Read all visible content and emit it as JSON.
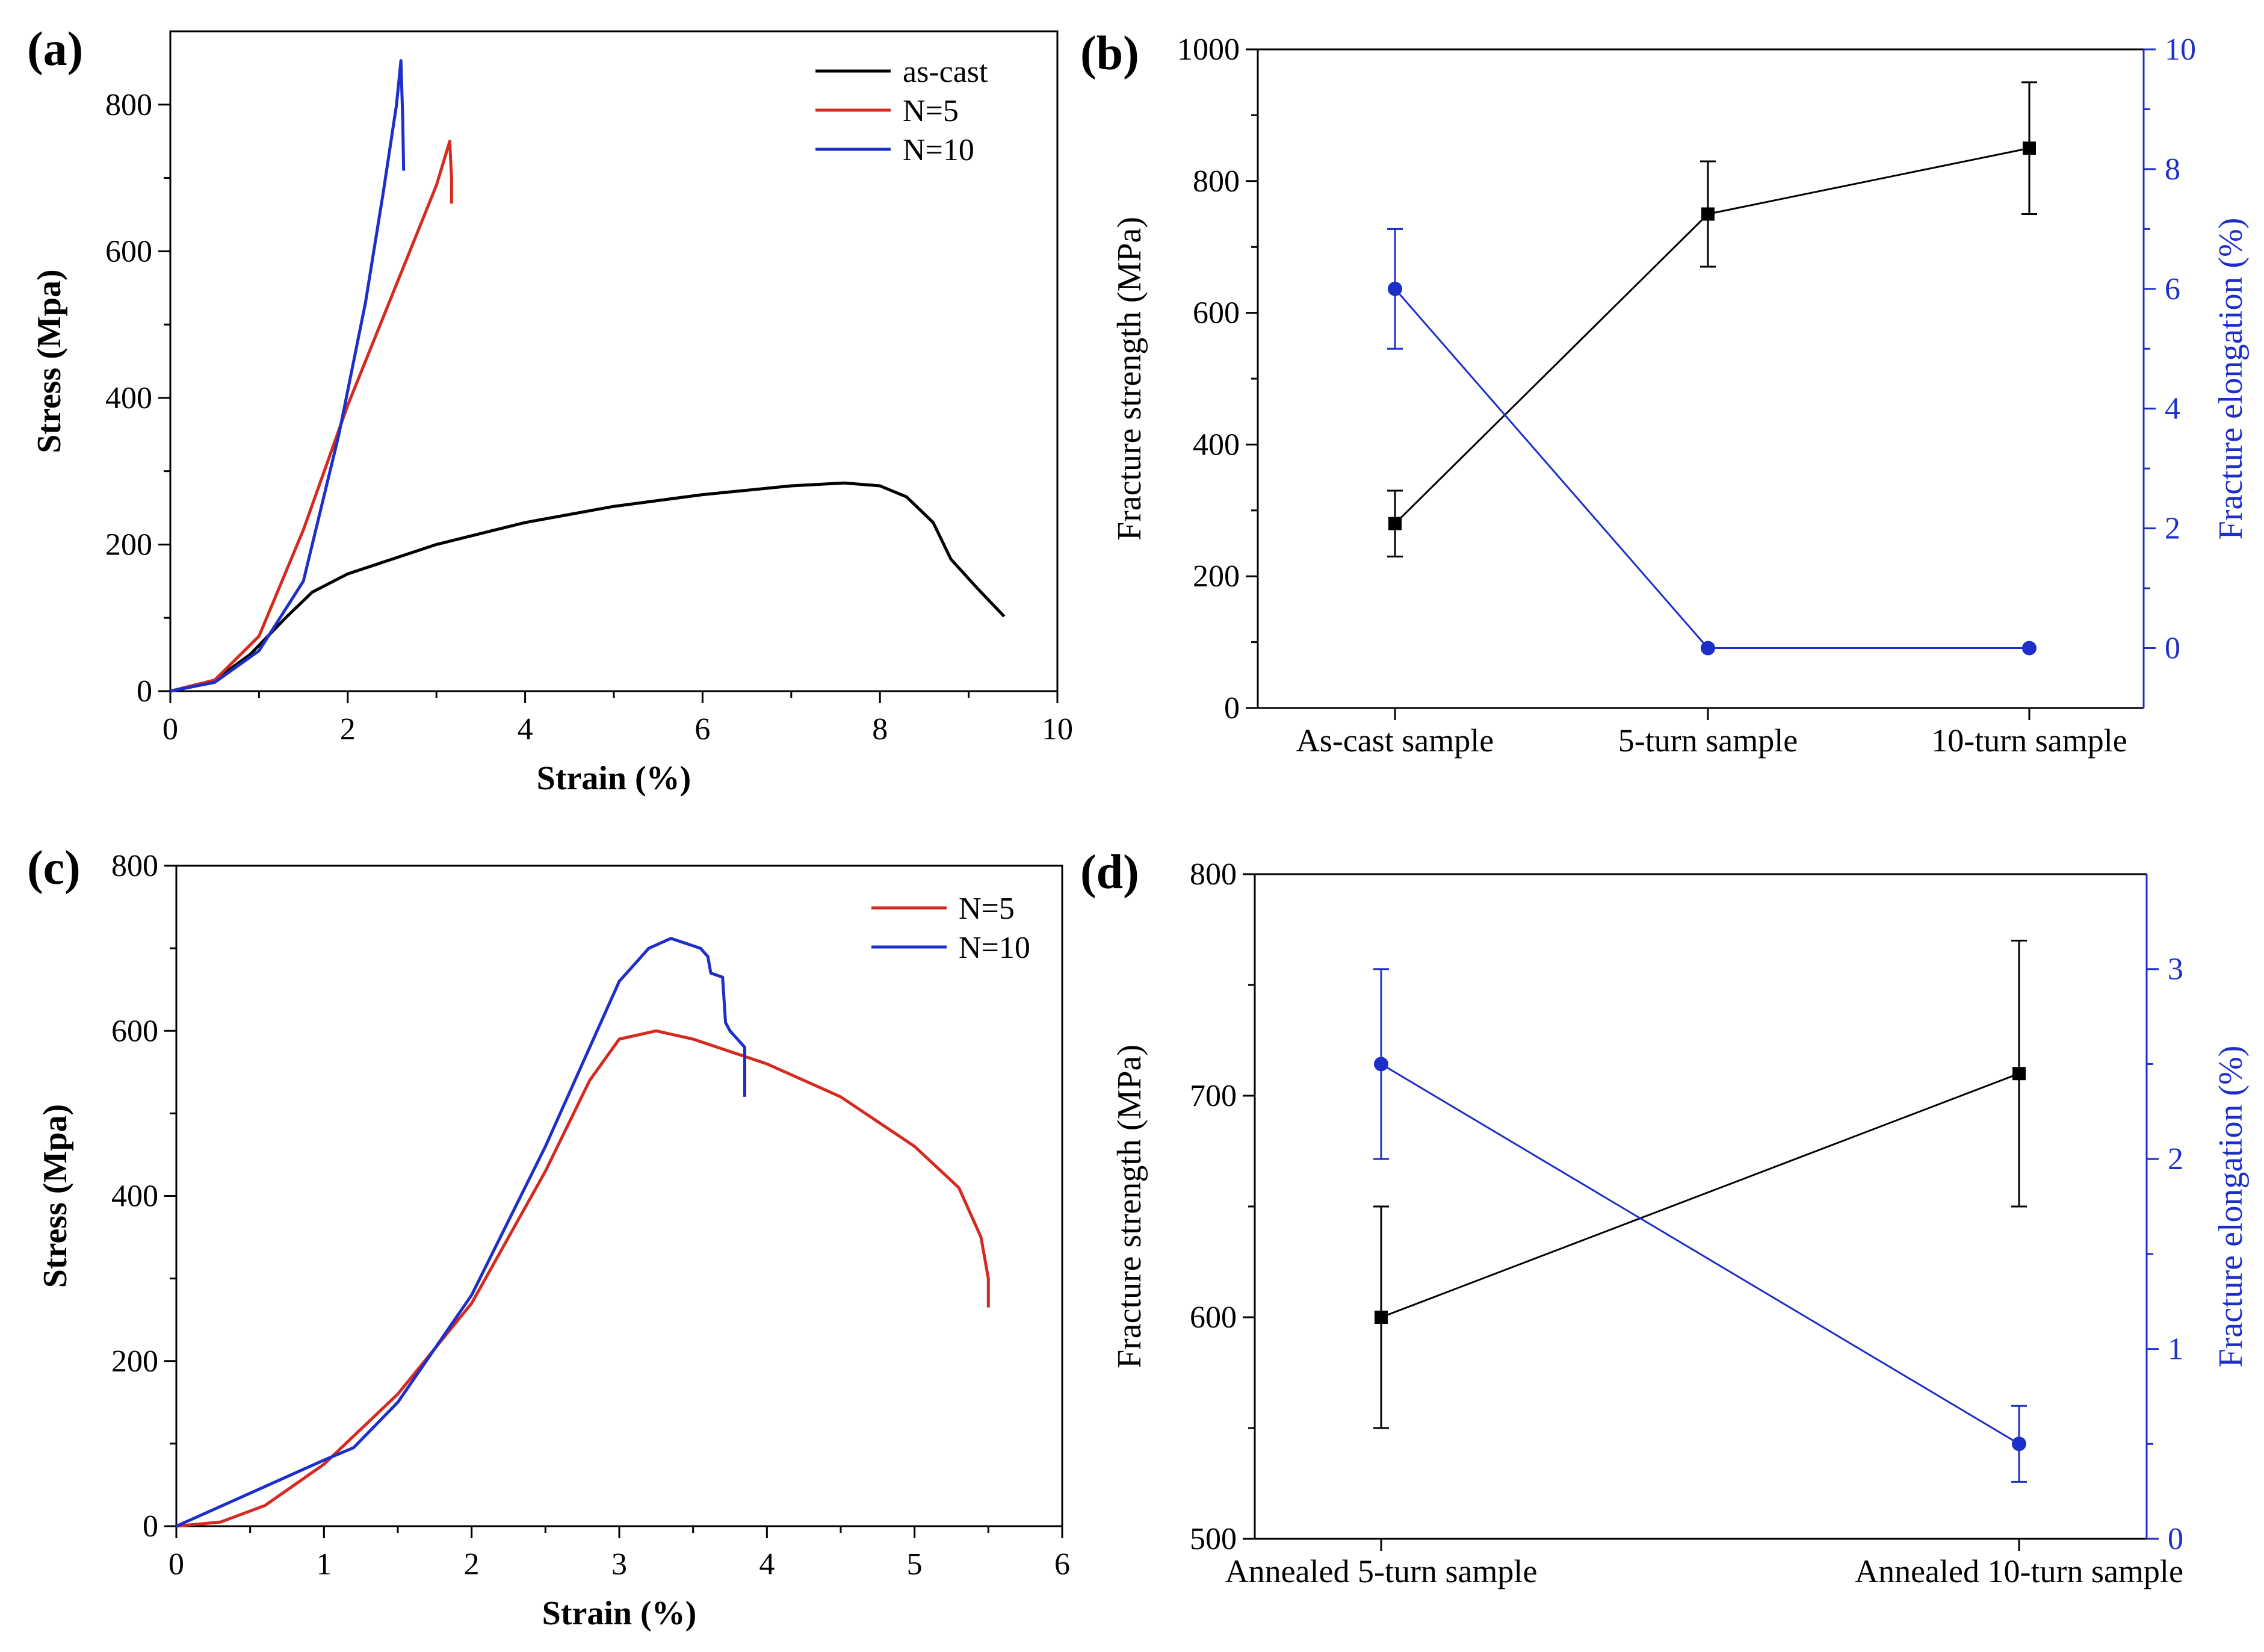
{
  "chart_data": [
    {
      "panel": "(a)",
      "type": "line",
      "xlabel": "Strain (%)",
      "ylabel": "Stress (Mpa)",
      "xlim": [
        0,
        10
      ],
      "ylim": [
        0,
        900
      ],
      "xticks": [
        0,
        2,
        4,
        6,
        8,
        10
      ],
      "yticks": [
        0,
        200,
        400,
        600,
        800
      ],
      "legend_position": "top-right",
      "series": [
        {
          "name": "as-cast",
          "color": "#000000",
          "x": [
            0,
            0.5,
            0.9,
            1.3,
            1.6,
            2.0,
            3.0,
            4.0,
            5.0,
            6.0,
            7.0,
            7.6,
            8.0,
            8.3,
            8.6,
            8.8,
            9.1,
            9.4
          ],
          "y": [
            0,
            15,
            50,
            100,
            135,
            160,
            200,
            230,
            252,
            268,
            280,
            284,
            280,
            265,
            230,
            180,
            140,
            102
          ]
        },
        {
          "name": "N=5",
          "color": "#d42a1f",
          "x": [
            0,
            0.5,
            1.0,
            1.5,
            2.0,
            2.5,
            3.0,
            3.15,
            3.17,
            3.17
          ],
          "y": [
            0,
            15,
            75,
            220,
            390,
            540,
            690,
            750,
            700,
            665
          ]
        },
        {
          "name": "N=10",
          "color": "#1d2fc9",
          "x": [
            0,
            0.5,
            1.0,
            1.5,
            1.9,
            2.2,
            2.4,
            2.55,
            2.6,
            2.62,
            2.63
          ],
          "y": [
            0,
            12,
            55,
            150,
            350,
            530,
            680,
            800,
            860,
            780,
            710
          ]
        }
      ]
    },
    {
      "panel": "(b)",
      "type": "line",
      "categories": [
        "As-cast sample",
        "5-turn sample",
        "10-turn sample"
      ],
      "ylabel": "Fracture strength (MPa)",
      "y2label": "Fracture elongation (%)",
      "ylim": [
        0,
        1000
      ],
      "y2lim": [
        -1,
        10
      ],
      "yticks": [
        0,
        200,
        400,
        600,
        800,
        1000
      ],
      "y2ticks": [
        0,
        2,
        4,
        6,
        8,
        10
      ],
      "series": [
        {
          "name": "Fracture strength",
          "axis": "left",
          "color": "#000000",
          "marker": "square",
          "values": [
            280,
            750,
            850
          ],
          "err_low": [
            230,
            670,
            750
          ],
          "err_high": [
            330,
            830,
            950
          ]
        },
        {
          "name": "Fracture elongation",
          "axis": "right",
          "color": "#1d2fc9",
          "marker": "circle",
          "values": [
            6,
            0,
            0
          ],
          "err_low": [
            5,
            0,
            0
          ],
          "err_high": [
            7,
            0,
            0
          ]
        }
      ]
    },
    {
      "panel": "(c)",
      "type": "line",
      "xlabel": "Strain (%)",
      "ylabel": "Stress (Mpa)",
      "xlim": [
        0,
        6
      ],
      "ylim": [
        0,
        800
      ],
      "xticks": [
        0,
        1,
        2,
        3,
        4,
        5,
        6
      ],
      "yticks": [
        0,
        200,
        400,
        600,
        800
      ],
      "legend_position": "top-right",
      "series": [
        {
          "name": "N=5",
          "color": "#d42a1f",
          "x": [
            0,
            0.3,
            0.6,
            1.0,
            1.5,
            2.0,
            2.5,
            2.8,
            3.0,
            3.25,
            3.5,
            4.0,
            4.5,
            5.0,
            5.3,
            5.45,
            5.5,
            5.5
          ],
          "y": [
            0,
            5,
            25,
            75,
            160,
            270,
            430,
            540,
            590,
            600,
            590,
            560,
            520,
            460,
            410,
            350,
            300,
            265
          ]
        },
        {
          "name": "N=10",
          "color": "#1d2fc9",
          "x": [
            0,
            0.5,
            1.0,
            1.2,
            1.5,
            2.0,
            2.5,
            2.8,
            3.0,
            3.2,
            3.35,
            3.55,
            3.6,
            3.62,
            3.7,
            3.72,
            3.75,
            3.8,
            3.85,
            3.85
          ],
          "y": [
            0,
            40,
            80,
            95,
            150,
            280,
            460,
            580,
            660,
            700,
            712,
            700,
            690,
            670,
            665,
            610,
            600,
            590,
            580,
            520
          ]
        }
      ]
    },
    {
      "panel": "(d)",
      "type": "line",
      "categories": [
        "Annealed 5-turn sample",
        "Annealed 10-turn sample"
      ],
      "ylabel": "Fracture strength (MPa)",
      "y2label": "Fracture elongation (%)",
      "ylim": [
        500,
        800
      ],
      "y2lim": [
        0,
        3.5
      ],
      "yticks": [
        500,
        600,
        700,
        800
      ],
      "y2ticks": [
        0,
        1,
        2,
        3
      ],
      "series": [
        {
          "name": "Fracture strength",
          "axis": "left",
          "color": "#000000",
          "marker": "square",
          "values": [
            600,
            710
          ],
          "err_low": [
            550,
            650
          ],
          "err_high": [
            650,
            770
          ]
        },
        {
          "name": "Fracture elongation",
          "axis": "right",
          "color": "#1d2fc9",
          "marker": "circle",
          "values": [
            2.5,
            0.5
          ],
          "err_low": [
            2.0,
            0.3
          ],
          "err_high": [
            3.0,
            0.7
          ]
        }
      ]
    }
  ]
}
